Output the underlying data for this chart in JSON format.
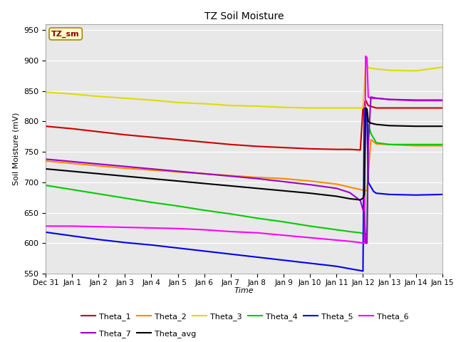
{
  "title": "TZ Soil Moisture",
  "xlabel": "Time",
  "ylabel": "Soil Moisture (mV)",
  "ylim": [
    550,
    960
  ],
  "xlim": [
    0,
    15
  ],
  "background_color": "#e8e8e8",
  "legend_label": "TZ_sm",
  "series": {
    "Theta_1": {
      "color": "#cc0000",
      "points": [
        [
          0,
          792
        ],
        [
          1,
          788
        ],
        [
          2,
          783
        ],
        [
          3,
          778
        ],
        [
          4,
          774
        ],
        [
          5,
          770
        ],
        [
          6,
          766
        ],
        [
          7,
          762
        ],
        [
          8,
          759
        ],
        [
          9,
          757
        ],
        [
          10,
          755
        ],
        [
          11,
          754
        ],
        [
          11.5,
          754
        ],
        [
          11.9,
          753
        ],
        [
          12.0,
          822
        ],
        [
          12.1,
          835
        ],
        [
          12.2,
          826
        ],
        [
          12.5,
          822
        ],
        [
          13,
          822
        ],
        [
          14,
          822
        ],
        [
          15,
          822
        ]
      ]
    },
    "Theta_2": {
      "color": "#ff8800",
      "points": [
        [
          0,
          735
        ],
        [
          1,
          731
        ],
        [
          2,
          727
        ],
        [
          3,
          723
        ],
        [
          4,
          720
        ],
        [
          5,
          717
        ],
        [
          6,
          714
        ],
        [
          7,
          711
        ],
        [
          8,
          708
        ],
        [
          9,
          706
        ],
        [
          10,
          702
        ],
        [
          11,
          697
        ],
        [
          11.5,
          692
        ],
        [
          11.9,
          688
        ],
        [
          12.0,
          687
        ],
        [
          12.15,
          686
        ],
        [
          12.3,
          770
        ],
        [
          12.5,
          763
        ],
        [
          13,
          762
        ],
        [
          14,
          760
        ],
        [
          15,
          760
        ]
      ]
    },
    "Theta_3": {
      "color": "#dddd00",
      "points": [
        [
          0,
          848
        ],
        [
          1,
          845
        ],
        [
          2,
          841
        ],
        [
          3,
          838
        ],
        [
          4,
          835
        ],
        [
          5,
          831
        ],
        [
          6,
          829
        ],
        [
          7,
          826
        ],
        [
          8,
          825
        ],
        [
          9,
          823
        ],
        [
          10,
          822
        ],
        [
          11,
          822
        ],
        [
          11.5,
          822
        ],
        [
          11.9,
          822
        ],
        [
          12.0,
          822
        ],
        [
          12.1,
          892
        ],
        [
          12.15,
          893
        ],
        [
          12.2,
          888
        ],
        [
          12.5,
          886
        ],
        [
          13,
          884
        ],
        [
          14,
          883
        ],
        [
          15,
          889
        ]
      ]
    },
    "Theta_4": {
      "color": "#00cc00",
      "points": [
        [
          0,
          695
        ],
        [
          1,
          688
        ],
        [
          2,
          681
        ],
        [
          3,
          674
        ],
        [
          4,
          667
        ],
        [
          5,
          661
        ],
        [
          6,
          654
        ],
        [
          7,
          648
        ],
        [
          8,
          641
        ],
        [
          9,
          635
        ],
        [
          10,
          628
        ],
        [
          11,
          622
        ],
        [
          11.5,
          619
        ],
        [
          11.9,
          617
        ],
        [
          12.0,
          616
        ],
        [
          12.1,
          615
        ],
        [
          12.15,
          614
        ],
        [
          12.2,
          795
        ],
        [
          12.3,
          780
        ],
        [
          12.5,
          765
        ],
        [
          13,
          762
        ],
        [
          14,
          762
        ],
        [
          15,
          762
        ]
      ]
    },
    "Theta_5": {
      "color": "#0000ee",
      "points": [
        [
          0,
          618
        ],
        [
          1,
          612
        ],
        [
          2,
          606
        ],
        [
          3,
          601
        ],
        [
          4,
          597
        ],
        [
          5,
          592
        ],
        [
          6,
          587
        ],
        [
          7,
          582
        ],
        [
          8,
          577
        ],
        [
          9,
          572
        ],
        [
          10,
          567
        ],
        [
          11,
          562
        ],
        [
          11.5,
          558
        ],
        [
          11.9,
          555
        ],
        [
          12.0,
          554
        ],
        [
          12.05,
          822
        ],
        [
          12.1,
          822
        ],
        [
          12.15,
          820
        ],
        [
          12.2,
          700
        ],
        [
          12.4,
          685
        ],
        [
          12.5,
          682
        ],
        [
          13,
          680
        ],
        [
          14,
          679
        ],
        [
          15,
          680
        ]
      ]
    },
    "Theta_6": {
      "color": "#ff00ff",
      "points": [
        [
          0,
          628
        ],
        [
          1,
          628
        ],
        [
          2,
          627
        ],
        [
          3,
          626
        ],
        [
          4,
          625
        ],
        [
          5,
          624
        ],
        [
          6,
          622
        ],
        [
          7,
          619
        ],
        [
          8,
          617
        ],
        [
          9,
          613
        ],
        [
          10,
          609
        ],
        [
          11,
          605
        ],
        [
          11.5,
          603
        ],
        [
          11.9,
          601
        ],
        [
          12.0,
          600
        ],
        [
          12.05,
          600
        ],
        [
          12.1,
          907
        ],
        [
          12.15,
          905
        ],
        [
          12.2,
          840
        ],
        [
          12.3,
          838
        ],
        [
          12.5,
          838
        ],
        [
          13,
          836
        ],
        [
          14,
          834
        ],
        [
          15,
          834
        ]
      ]
    },
    "Theta_7": {
      "color": "#9900cc",
      "points": [
        [
          0,
          738
        ],
        [
          1,
          734
        ],
        [
          2,
          730
        ],
        [
          3,
          726
        ],
        [
          4,
          722
        ],
        [
          5,
          718
        ],
        [
          6,
          714
        ],
        [
          7,
          710
        ],
        [
          8,
          706
        ],
        [
          9,
          701
        ],
        [
          10,
          696
        ],
        [
          11,
          690
        ],
        [
          11.5,
          683
        ],
        [
          11.9,
          670
        ],
        [
          12.0,
          655
        ],
        [
          12.05,
          651
        ],
        [
          12.1,
          600
        ],
        [
          12.15,
          600
        ],
        [
          12.2,
          760
        ],
        [
          12.3,
          840
        ],
        [
          12.5,
          838
        ],
        [
          13,
          836
        ],
        [
          14,
          835
        ],
        [
          15,
          835
        ]
      ]
    },
    "Theta_avg": {
      "color": "#000000",
      "points": [
        [
          0,
          722
        ],
        [
          1,
          718
        ],
        [
          2,
          714
        ],
        [
          3,
          710
        ],
        [
          4,
          706
        ],
        [
          5,
          702
        ],
        [
          6,
          698
        ],
        [
          7,
          694
        ],
        [
          8,
          690
        ],
        [
          9,
          686
        ],
        [
          10,
          682
        ],
        [
          11,
          677
        ],
        [
          11.5,
          673
        ],
        [
          11.9,
          671
        ],
        [
          12.0,
          674
        ],
        [
          12.05,
          680
        ],
        [
          12.1,
          822
        ],
        [
          12.15,
          820
        ],
        [
          12.2,
          800
        ],
        [
          12.3,
          797
        ],
        [
          12.5,
          795
        ],
        [
          13,
          793
        ],
        [
          14,
          792
        ],
        [
          15,
          792
        ]
      ]
    }
  },
  "xtick_labels": [
    "Dec 31",
    "Jan 1",
    "Jan 2",
    "Jan 3",
    "Jan 4",
    "Jan 5",
    "Jan 6",
    "Jan 7",
    "Jan 8",
    "Jan 9",
    "Jan 10",
    "Jan 11",
    "Jan 12",
    "Jan 13",
    "Jan 14",
    "Jan 15"
  ],
  "xtick_positions": [
    0,
    1,
    2,
    3,
    4,
    5,
    6,
    7,
    8,
    9,
    10,
    11,
    12,
    13,
    14,
    15
  ],
  "legend_entries": [
    "Theta_1",
    "Theta_2",
    "Theta_3",
    "Theta_4",
    "Theta_5",
    "Theta_6",
    "Theta_7",
    "Theta_avg"
  ],
  "legend_colors": [
    "#cc0000",
    "#ff8800",
    "#dddd00",
    "#00cc00",
    "#0000ee",
    "#ff00ff",
    "#9900cc",
    "#000000"
  ],
  "legend_row1": [
    "Theta_1",
    "Theta_2",
    "Theta_3",
    "Theta_4",
    "Theta_5",
    "Theta_6"
  ],
  "legend_row2": [
    "Theta_7",
    "Theta_avg"
  ]
}
